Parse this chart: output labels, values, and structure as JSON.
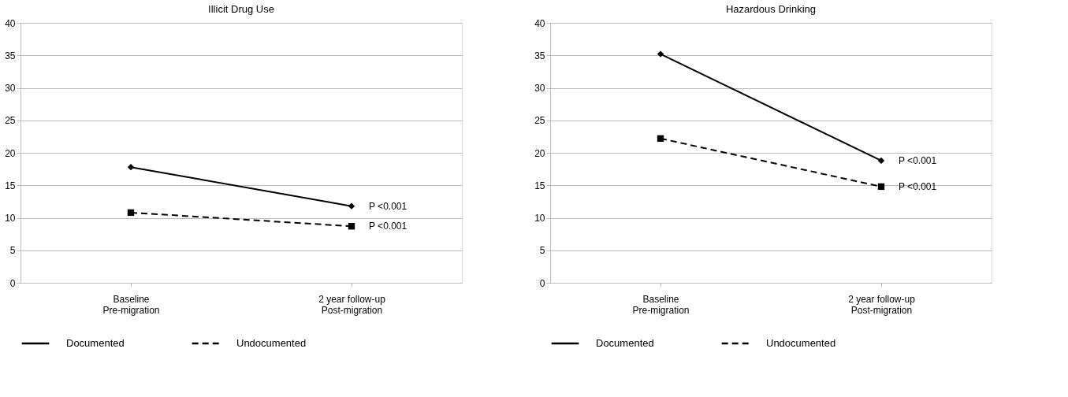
{
  "chart_data": [
    {
      "type": "line",
      "title": "Illicit Drug Use",
      "categories": [
        "Baseline\nPre-migration",
        "2 year follow-up\nPost-migration"
      ],
      "ylim": [
        0,
        40
      ],
      "yticks": [
        0,
        5,
        10,
        15,
        20,
        25,
        30,
        35,
        40
      ],
      "grid": "y",
      "legend": "bottom",
      "series": [
        {
          "name": "Documented",
          "color": "#000000",
          "values": [
            17.8,
            11.8
          ],
          "marker": "diamond",
          "line_style": "solid"
        },
        {
          "name": "Undocumented",
          "color": "#000000",
          "values": [
            10.8,
            8.7
          ],
          "marker": "square",
          "line_style": "dashed"
        }
      ],
      "annotations": [
        {
          "text": "P <0.001",
          "x": "2 year follow-up\nPost-migration",
          "y": 11.8
        },
        {
          "text": "P <0.001",
          "x": "2 year follow-up\nPost-migration",
          "y": 8.7
        }
      ]
    },
    {
      "type": "line",
      "title": "Hazardous Drinking",
      "categories": [
        "Baseline\nPre-migration",
        "2 year follow-up\nPost-migration"
      ],
      "ylim": [
        0,
        40
      ],
      "yticks": [
        0,
        5,
        10,
        15,
        20,
        25,
        30,
        35,
        40
      ],
      "grid": "y",
      "legend": "bottom",
      "series": [
        {
          "name": "Documented",
          "color": "#000000",
          "values": [
            35.2,
            18.8
          ],
          "marker": "diamond",
          "line_style": "solid"
        },
        {
          "name": "Undocumented",
          "color": "#000000",
          "values": [
            22.2,
            14.8
          ],
          "marker": "square",
          "line_style": "dashed"
        }
      ],
      "annotations": [
        {
          "text": "P <0.001",
          "x": "2 year follow-up\nPost-migration",
          "y": 18.8
        },
        {
          "text": "P <0.001",
          "x": "2 year follow-up\nPost-migration",
          "y": 14.8
        }
      ]
    }
  ]
}
